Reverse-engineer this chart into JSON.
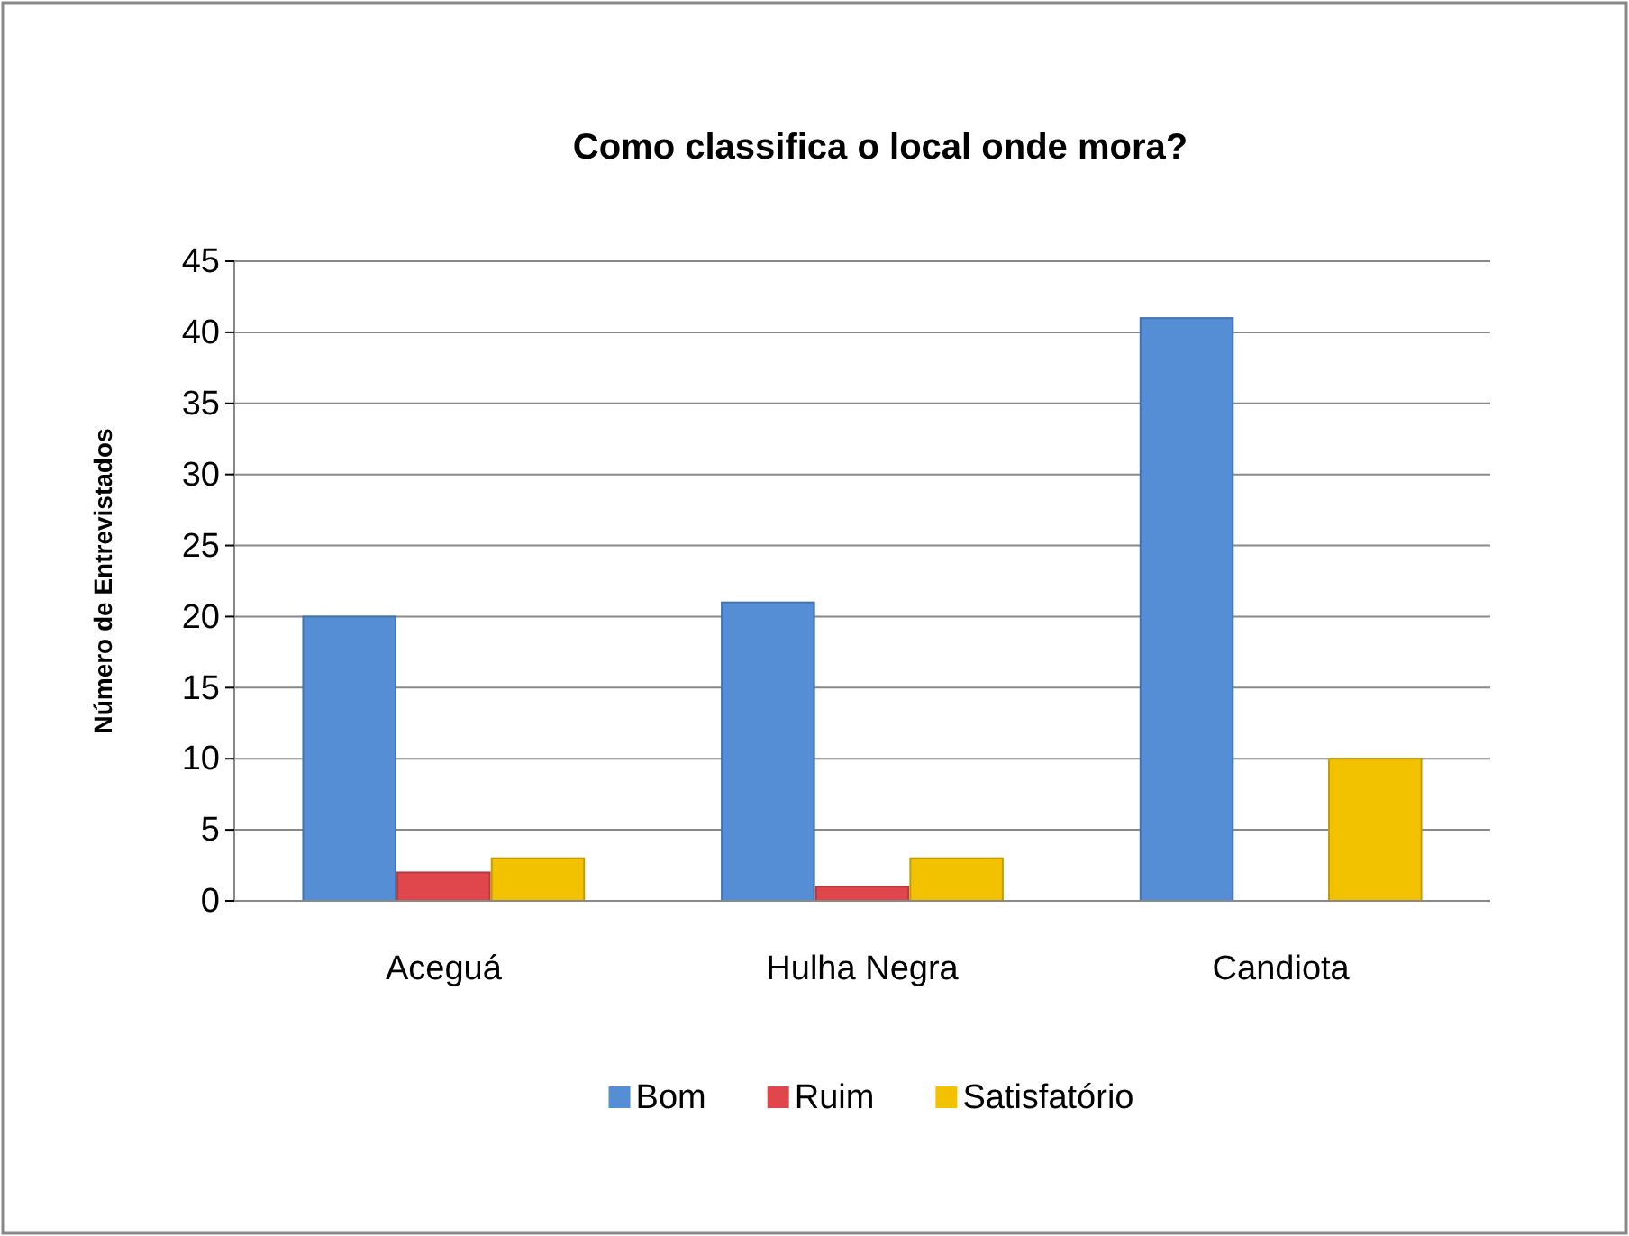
{
  "chart_data": {
    "type": "bar",
    "title": "Como classifica o local onde mora?",
    "ylabel": "Número de Entrevistados",
    "categories": [
      "Aceguá",
      "Hulha Negra",
      "Candiota"
    ],
    "series": [
      {
        "name": "Bom",
        "color": "#558ed5",
        "values": [
          20,
          21,
          41
        ]
      },
      {
        "name": "Ruim",
        "color": "#e0474c",
        "values": [
          2,
          1,
          0
        ]
      },
      {
        "name": "Satisfatório",
        "color": "#f2c200",
        "values": [
          3,
          3,
          10
        ]
      }
    ],
    "ylim": [
      0,
      45
    ],
    "yticks": [
      0,
      5,
      10,
      15,
      20,
      25,
      30,
      35,
      40,
      45
    ],
    "grid": "y",
    "legend": "bottom"
  }
}
